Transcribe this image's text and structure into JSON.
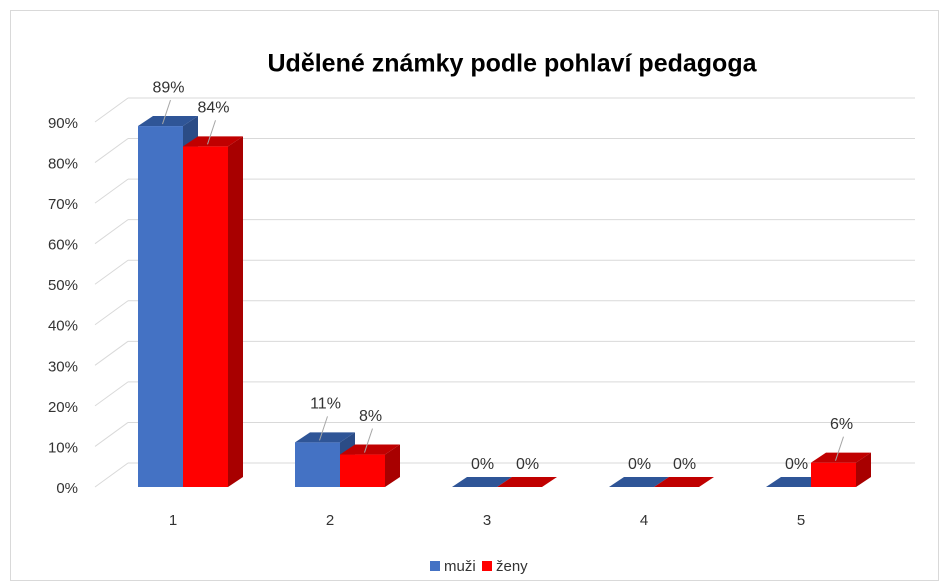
{
  "chart_data": {
    "type": "bar3d",
    "title": "Udělené známky podle pohlaví pedagoga",
    "categories": [
      "1",
      "2",
      "3",
      "4",
      "5"
    ],
    "series": [
      {
        "name": "muži",
        "color": "#4472c4",
        "values": [
          89,
          11,
          0,
          0,
          0
        ],
        "value_labels": [
          "89%",
          "11%",
          "0%",
          "0%",
          "0%"
        ]
      },
      {
        "name": "ženy",
        "color": "#ff0000",
        "values": [
          84,
          8,
          0,
          0,
          6
        ],
        "value_labels": [
          "84%",
          "8%",
          "0%",
          "0%",
          "6%"
        ]
      }
    ],
    "ylim": [
      0,
      90
    ],
    "yticks": [
      {
        "value": 0,
        "label": "0%"
      },
      {
        "value": 10,
        "label": "10%"
      },
      {
        "value": 20,
        "label": "20%"
      },
      {
        "value": 30,
        "label": "30%"
      },
      {
        "value": 40,
        "label": "40%"
      },
      {
        "value": 50,
        "label": "50%"
      },
      {
        "value": 60,
        "label": "60%"
      },
      {
        "value": 70,
        "label": "70%"
      },
      {
        "value": 80,
        "label": "80%"
      },
      {
        "value": 90,
        "label": "90%"
      }
    ],
    "grid": true,
    "legend": "bottom"
  }
}
